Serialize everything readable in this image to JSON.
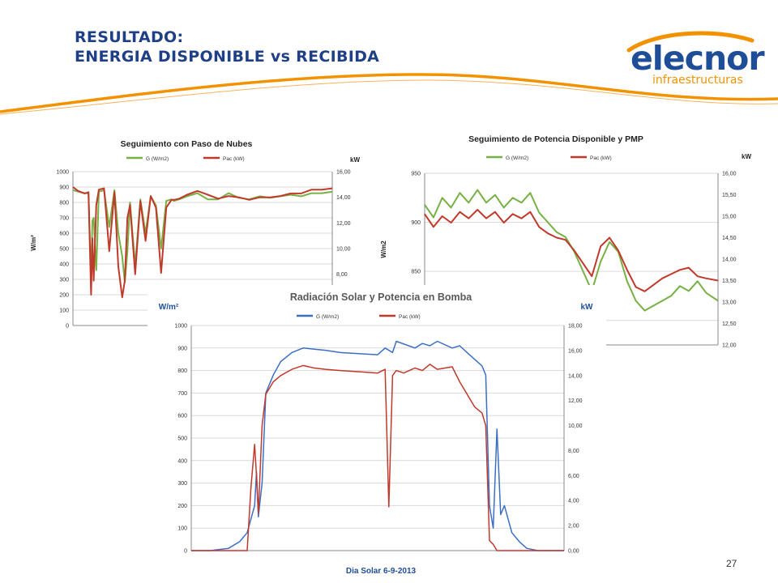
{
  "slide": {
    "title_line1": "RESULTADO:",
    "title_line2": "ENERGIA DISPONIBLE vs RECIBIDA",
    "page_number": "27",
    "logo": {
      "name": "elecnor",
      "subtitle": "infraestructuras"
    },
    "colors": {
      "title": "#1f3f86",
      "accent": "#f39200",
      "logo_blue": "#1f4e99",
      "series_g_small": "#77b043",
      "series_pac": "#c0392b",
      "series_g_main": "#3b6fc4"
    }
  },
  "chart_data": [
    {
      "type": "line",
      "title": "Seguimiento con Paso de Nubes",
      "ylabel": "W/m²",
      "y2label": "kW",
      "ylim": [
        0,
        1000
      ],
      "y2lim": [
        4,
        16
      ],
      "yticks": [
        "0",
        "100",
        "200",
        "300",
        "400",
        "500",
        "600",
        "700",
        "800",
        "900",
        "1000"
      ],
      "y2ticks": [
        "6,00",
        "8,00",
        "10,00",
        "12,00",
        "14,00",
        "16,00"
      ],
      "legend_position": "top",
      "series": [
        {
          "name": "G (W/m2)",
          "axis": "left",
          "color": "#77b043",
          "x": [
            0,
            0.02,
            0.045,
            0.06,
            0.07,
            0.075,
            0.08,
            0.09,
            0.1,
            0.12,
            0.14,
            0.16,
            0.175,
            0.19,
            0.2,
            0.21,
            0.22,
            0.24,
            0.26,
            0.28,
            0.3,
            0.32,
            0.34,
            0.36,
            0.38,
            0.39,
            0.41,
            0.44,
            0.48,
            0.52,
            0.56,
            0.6,
            0.64,
            0.68,
            0.72,
            0.76,
            0.8,
            0.84,
            0.88,
            0.92,
            0.96,
            1
          ],
          "y": [
            880,
            870,
            860,
            860,
            300,
            680,
            700,
            360,
            870,
            880,
            640,
            880,
            600,
            450,
            280,
            480,
            800,
            390,
            820,
            600,
            840,
            780,
            500,
            810,
            820,
            810,
            820,
            840,
            860,
            820,
            820,
            860,
            830,
            820,
            840,
            830,
            840,
            850,
            840,
            860,
            860,
            870
          ]
        },
        {
          "name": "Pac (kW)",
          "axis": "right",
          "color": "#c0392b",
          "x": [
            0,
            0.02,
            0.045,
            0.06,
            0.07,
            0.075,
            0.08,
            0.09,
            0.1,
            0.12,
            0.14,
            0.16,
            0.175,
            0.19,
            0.2,
            0.21,
            0.22,
            0.24,
            0.26,
            0.28,
            0.3,
            0.32,
            0.34,
            0.36,
            0.38,
            0.39,
            0.41,
            0.44,
            0.48,
            0.52,
            0.56,
            0.6,
            0.64,
            0.68,
            0.72,
            0.76,
            0.8,
            0.84,
            0.88,
            0.92,
            0.96,
            1
          ],
          "y": [
            14.8,
            14.5,
            14.3,
            14.4,
            6.4,
            10.8,
            7.5,
            13.4,
            14.6,
            14.7,
            9.8,
            14.4,
            8.6,
            6.2,
            7.5,
            12.4,
            13.4,
            8.0,
            13.7,
            10.6,
            14.1,
            13.2,
            8.1,
            13.2,
            13.8,
            13.8,
            13.9,
            14.2,
            14.5,
            14.2,
            13.9,
            14.1,
            14.0,
            13.8,
            14.0,
            14.0,
            14.1,
            14.3,
            14.3,
            14.6,
            14.6,
            14.7
          ]
        }
      ]
    },
    {
      "type": "line",
      "title": "Seguimiento de Potencia Disponible y PMP",
      "ylabel": "W/m2",
      "y2label": "kW",
      "ylim": [
        775,
        950
      ],
      "y2lim": [
        12,
        16
      ],
      "yticks": [
        "800",
        "850",
        "900",
        "950"
      ],
      "y2ticks": [
        "12,00",
        "12,50",
        "13,00",
        "13,50",
        "14,00",
        "14,50",
        "15,00",
        "15,50",
        "16,00"
      ],
      "legend_position": "top",
      "series": [
        {
          "name": "G (W/m2)",
          "axis": "left",
          "color": "#77b043",
          "x": [
            0,
            0.03,
            0.06,
            0.09,
            0.12,
            0.15,
            0.18,
            0.21,
            0.24,
            0.27,
            0.3,
            0.33,
            0.36,
            0.39,
            0.42,
            0.45,
            0.48,
            0.51,
            0.54,
            0.57,
            0.6,
            0.63,
            0.66,
            0.69,
            0.72,
            0.75,
            0.78,
            0.81,
            0.84,
            0.87,
            0.9,
            0.93,
            0.96,
            1
          ],
          "y": [
            918,
            905,
            925,
            915,
            930,
            920,
            933,
            920,
            928,
            915,
            925,
            920,
            930,
            910,
            900,
            890,
            885,
            870,
            850,
            830,
            860,
            880,
            870,
            840,
            820,
            810,
            815,
            820,
            825,
            835,
            830,
            840,
            828,
            820
          ]
        },
        {
          "name": "Pac (kW)",
          "axis": "right",
          "color": "#c0392b",
          "x": [
            0,
            0.03,
            0.06,
            0.09,
            0.12,
            0.15,
            0.18,
            0.21,
            0.24,
            0.27,
            0.3,
            0.33,
            0.36,
            0.39,
            0.42,
            0.45,
            0.48,
            0.51,
            0.54,
            0.57,
            0.6,
            0.63,
            0.66,
            0.69,
            0.72,
            0.75,
            0.78,
            0.81,
            0.84,
            0.87,
            0.9,
            0.93,
            0.96,
            1
          ],
          "y": [
            15.05,
            14.75,
            15.0,
            14.85,
            15.1,
            14.95,
            15.15,
            14.95,
            15.1,
            14.85,
            15.05,
            14.95,
            15.1,
            14.75,
            14.6,
            14.5,
            14.45,
            14.2,
            13.9,
            13.6,
            14.3,
            14.5,
            14.2,
            13.75,
            13.35,
            13.25,
            13.4,
            13.55,
            13.65,
            13.75,
            13.8,
            13.6,
            13.55,
            13.5
          ]
        }
      ]
    },
    {
      "type": "line",
      "title": "Radiación Solar y Potencia en Bomba",
      "xlabel": "Dia Solar 6-9-2013",
      "ylabel": "W/m²",
      "y2label": "kW",
      "ylim": [
        0,
        1000
      ],
      "y2lim": [
        0,
        18
      ],
      "yticks": [
        "0",
        "100",
        "200",
        "300",
        "400",
        "500",
        "600",
        "700",
        "800",
        "900",
        "1000"
      ],
      "y2ticks": [
        "0,00",
        "2,00",
        "4,00",
        "6,00",
        "8,00",
        "10,00",
        "12,00",
        "14,00",
        "16,00",
        "18,00"
      ],
      "legend_position": "top",
      "series": [
        {
          "name": "G (W/m2)",
          "axis": "left",
          "color": "#3b6fc4",
          "x": [
            0,
            0.05,
            0.1,
            0.13,
            0.15,
            0.17,
            0.175,
            0.18,
            0.19,
            0.2,
            0.21,
            0.22,
            0.24,
            0.27,
            0.3,
            0.33,
            0.36,
            0.4,
            0.45,
            0.5,
            0.52,
            0.54,
            0.55,
            0.6,
            0.62,
            0.64,
            0.66,
            0.7,
            0.72,
            0.74,
            0.76,
            0.78,
            0.79,
            0.8,
            0.81,
            0.82,
            0.83,
            0.84,
            0.86,
            0.88,
            0.9,
            0.93,
            0.95,
            1
          ],
          "y": [
            0,
            0,
            10,
            40,
            80,
            200,
            350,
            150,
            300,
            700,
            740,
            780,
            840,
            880,
            900,
            895,
            890,
            880,
            875,
            870,
            900,
            880,
            930,
            900,
            920,
            910,
            930,
            900,
            910,
            880,
            850,
            820,
            780,
            200,
            100,
            540,
            160,
            200,
            80,
            40,
            10,
            0,
            0,
            0
          ]
        },
        {
          "name": "Pac (kW)",
          "axis": "right",
          "color": "#c0392b",
          "x": [
            0,
            0.05,
            0.1,
            0.13,
            0.15,
            0.16,
            0.17,
            0.175,
            0.18,
            0.19,
            0.2,
            0.21,
            0.22,
            0.24,
            0.27,
            0.3,
            0.33,
            0.36,
            0.4,
            0.45,
            0.5,
            0.52,
            0.53,
            0.54,
            0.55,
            0.57,
            0.6,
            0.62,
            0.64,
            0.66,
            0.7,
            0.72,
            0.74,
            0.76,
            0.78,
            0.79,
            0.8,
            0.81,
            0.82,
            0.85,
            0.9,
            1
          ],
          "y": [
            0,
            0,
            0,
            0,
            0,
            5,
            8.5,
            6,
            3,
            10,
            12.5,
            13,
            13.5,
            14,
            14.5,
            14.8,
            14.6,
            14.5,
            14.4,
            14.3,
            14.2,
            14.5,
            3.5,
            14,
            14.4,
            14.2,
            14.6,
            14.4,
            14.9,
            14.5,
            14.7,
            13.5,
            12.5,
            11.5,
            11,
            10,
            0.8,
            0.5,
            0,
            0,
            0,
            0
          ]
        }
      ]
    }
  ]
}
